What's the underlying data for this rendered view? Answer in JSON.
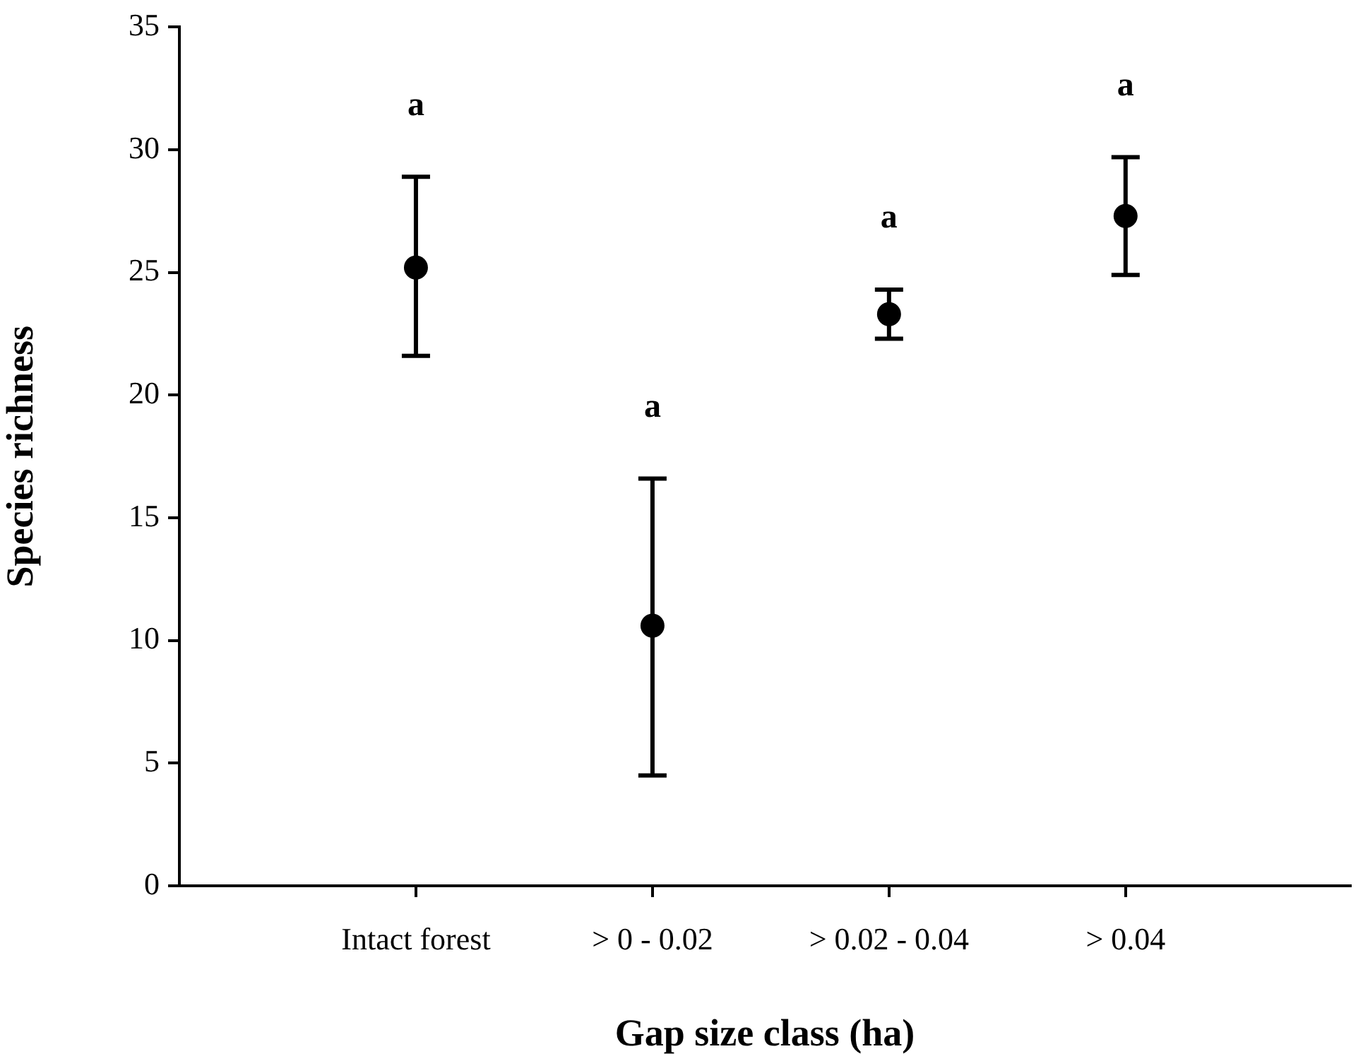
{
  "chart_data": {
    "type": "scatter",
    "xlabel": "Gap size class (ha)",
    "ylabel": "Species richness",
    "categories": [
      "Intact forest",
      "> 0 - 0.02",
      "> 0.02 - 0.04",
      "> 0.04"
    ],
    "values": [
      25.2,
      10.6,
      23.3,
      27.3
    ],
    "errors": [
      [
        21.6,
        28.9
      ],
      [
        4.5,
        16.6
      ],
      [
        22.3,
        24.3
      ],
      [
        24.9,
        29.7
      ]
    ],
    "color": "#000000",
    "marker": "circle",
    "ylim": [
      0,
      35
    ],
    "yticks": [
      0,
      5,
      10,
      15,
      20,
      25,
      30,
      35
    ],
    "grid": false,
    "legend": false,
    "annotations": [
      "a",
      "a",
      "a",
      "a"
    ]
  }
}
